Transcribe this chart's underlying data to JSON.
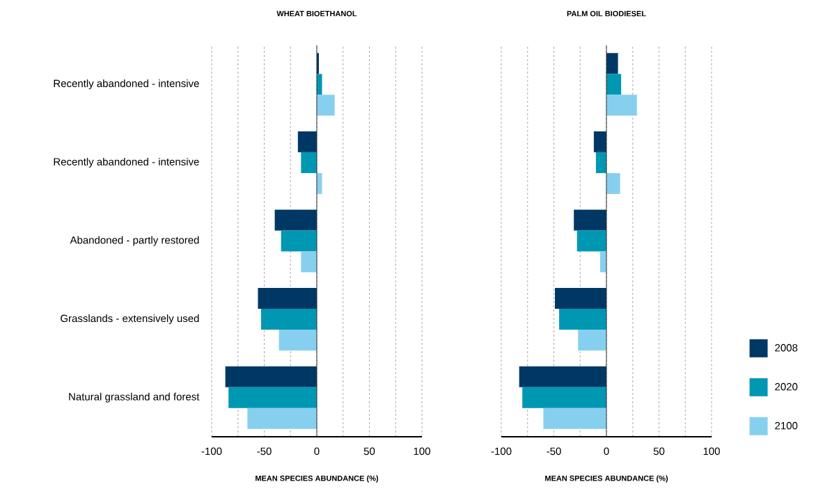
{
  "chart_data": [
    {
      "type": "bar",
      "orientation": "horizontal",
      "title": "WHEAT BIOETHANOL",
      "xlabel": "MEAN SPECIES ABUNDANCE (%)",
      "categories": [
        "Recently abandoned - intensive",
        "Recently abandoned - intensive",
        "Abandoned - partly restored",
        "Grasslands - extensively used",
        "Natural grassland and forest"
      ],
      "series": [
        {
          "color": "#003865",
          "values": [
            2,
            -18,
            -40,
            -56,
            -87
          ]
        },
        {
          "color": "#0097b2",
          "values": [
            5,
            -15,
            -34,
            -53,
            -84
          ]
        },
        {
          "color": "#87cfef",
          "values": [
            17,
            5,
            -15,
            -36,
            -66
          ]
        }
      ],
      "xlim": [
        -100,
        100
      ],
      "xticks": [
        {
          "value": -100,
          "label": "-100"
        },
        {
          "value": -75,
          "label": null
        },
        {
          "value": -50,
          "label": "-50"
        },
        {
          "value": -25,
          "label": null
        },
        0,
        {
          "value": 25,
          "label": null
        },
        50,
        {
          "value": 75,
          "label": null
        },
        100
      ],
      "grid": "x",
      "legend": false
    },
    {
      "type": "bar",
      "orientation": "horizontal",
      "title": "PALM OIL BIODIESEL",
      "xlabel": "MEAN SPECIES ABUNDANCE (%)",
      "categories": [
        null,
        null,
        null,
        null,
        null
      ],
      "series": [
        {
          "name": "2008",
          "color": "#003865",
          "values": [
            11,
            -12,
            -31,
            -49,
            -83
          ]
        },
        {
          "name": "2020",
          "color": "#0097b2",
          "values": [
            14,
            -10,
            -28,
            -45,
            -80
          ]
        },
        {
          "name": "2100",
          "color": "#87cfef",
          "values": [
            29,
            13,
            -6,
            -27,
            -60
          ]
        }
      ],
      "xlim": [
        -100,
        100
      ],
      "xticks": [
        {
          "value": -100,
          "label": "-100"
        },
        {
          "value": -75,
          "label": null
        },
        {
          "value": -50,
          "label": "-50"
        },
        {
          "value": -25,
          "label": null
        },
        0,
        {
          "value": 25,
          "label": null
        },
        50,
        {
          "value": 75,
          "label": null
        },
        100
      ],
      "grid": "x",
      "legend": "right",
      "tick_labels": "x"
    }
  ]
}
